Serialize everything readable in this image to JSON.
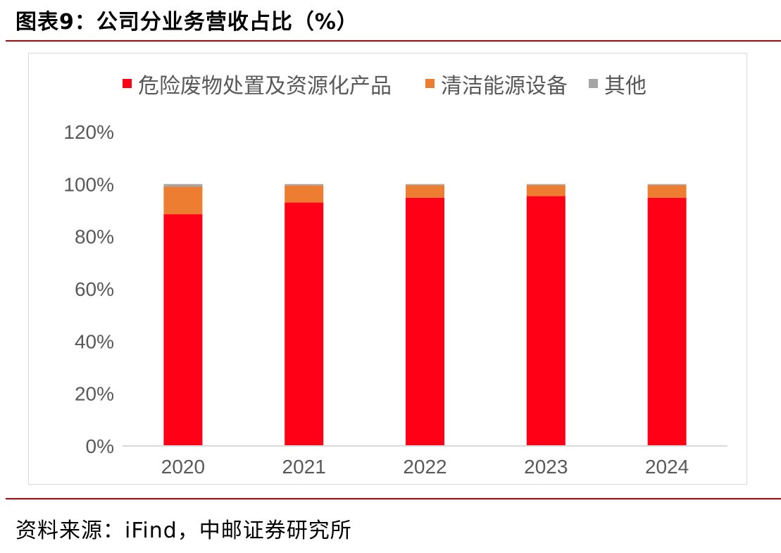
{
  "figure_title": "图表9：公司分业务营收占比（%）",
  "source_text": "资料来源：iFind，中邮证券研究所",
  "colors": {
    "accent_rule": "#c00000"
  },
  "chart_data": {
    "type": "bar",
    "stacked": true,
    "categories": [
      "2020",
      "2021",
      "2022",
      "2023",
      "2024"
    ],
    "series": [
      {
        "name": "危险废物处置及资源化产品",
        "color": "#ff0016",
        "values": [
          88.5,
          93.0,
          94.8,
          95.4,
          94.8
        ]
      },
      {
        "name": "清洁能源设备",
        "color": "#ed7d31",
        "values": [
          10.5,
          6.5,
          4.8,
          4.2,
          4.8
        ]
      },
      {
        "name": "其他",
        "color": "#a5a5a5",
        "values": [
          1.0,
          0.5,
          0.4,
          0.4,
          0.4
        ]
      }
    ],
    "y_ticks": [
      "0%",
      "20%",
      "40%",
      "60%",
      "80%",
      "100%",
      "120%"
    ],
    "ylim": [
      0,
      120
    ],
    "grid": false,
    "legend_position": "top"
  }
}
